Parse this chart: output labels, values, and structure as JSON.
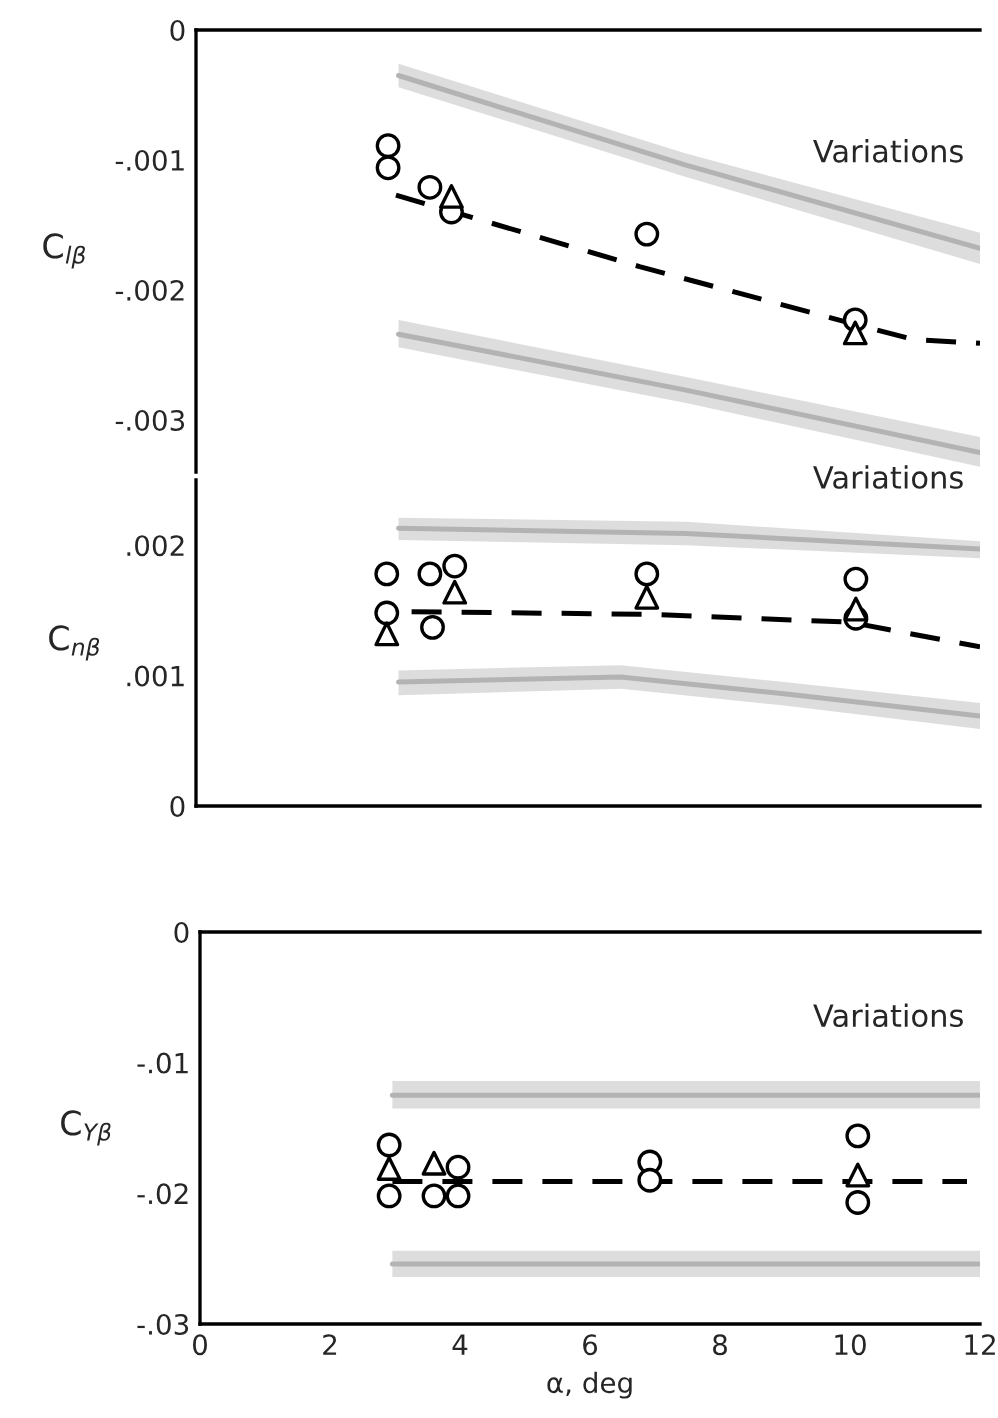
{
  "chart_data": [
    {
      "type": "scatter",
      "ylabel": "C$_{lβ}$",
      "xlim": [
        0,
        12
      ],
      "ylim": [
        -0.0034,
        0
      ],
      "yticks": [
        {
          "value": 0,
          "label": "0"
        },
        {
          "value": -0.001,
          "label": "-.001"
        },
        {
          "value": -0.002,
          "label": "-.002"
        },
        {
          "value": -0.003,
          "label": "-.003"
        }
      ],
      "tick_labels": "y",
      "grid": false,
      "legend": false,
      "annotations": [
        "Variations"
      ],
      "series": [
        {
          "type": "line",
          "color": "#b3b3b3",
          "line_style": "solid",
          "marker": "none",
          "x": [
            3.1,
            7.5,
            12
          ],
          "values": [
            -0.00035,
            -0.00104,
            -0.00168
          ],
          "upper": [
            -0.00026,
            -0.00095,
            -0.00156
          ],
          "lower": [
            -0.00044,
            -0.00113,
            -0.0018
          ]
        },
        {
          "type": "line",
          "color": "#b3b3b3",
          "line_style": "solid",
          "marker": "none",
          "x": [
            3.1,
            7.5,
            12
          ],
          "values": [
            -0.00234,
            -0.00277,
            -0.00325
          ],
          "upper": [
            -0.00223,
            -0.00267,
            -0.00313
          ],
          "lower": [
            -0.00244,
            -0.00287,
            -0.00336
          ]
        },
        {
          "type": "line",
          "color": "#000000",
          "line_style": "dashed",
          "marker": "none",
          "x": [
            3.06,
            6.79,
            10.06,
            10.98,
            12
          ],
          "values": [
            -0.00127,
            -0.00182,
            -0.00226,
            -0.00238,
            -0.00241
          ]
        },
        {
          "color": "#000000",
          "marker": "circle",
          "x": [
            2.94,
            2.94,
            3.58,
            3.91,
            6.9,
            10.09
          ],
          "values": [
            -0.00089,
            -0.00106,
            -0.00121,
            -0.0014,
            -0.00157,
            -0.00223
          ]
        },
        {
          "color": "#000000",
          "marker": "triangle",
          "x": [
            3.91,
            10.09
          ],
          "values": [
            -0.00128,
            -0.00233
          ]
        }
      ]
    },
    {
      "type": "scatter",
      "ylabel": "C$_{nβ}$",
      "xlim": [
        0,
        12
      ],
      "ylim": [
        0,
        0.0025
      ],
      "yticks": [
        {
          "value": 0,
          "label": "0"
        },
        {
          "value": 0.001,
          "label": ".001"
        },
        {
          "value": 0.002,
          "label": ".002"
        }
      ],
      "tick_labels": "y",
      "grid": false,
      "legend": false,
      "annotations": [
        "Variations"
      ],
      "series": [
        {
          "type": "line",
          "color": "#b3b3b3",
          "line_style": "solid",
          "marker": "none",
          "x": [
            3.1,
            7.5,
            12
          ],
          "values": [
            0.00213,
            0.00209,
            0.00197
          ],
          "upper": [
            0.00221,
            0.00218,
            0.00203
          ],
          "lower": [
            0.00204,
            0.002,
            0.0019
          ]
        },
        {
          "type": "line",
          "color": "#b3b3b3",
          "line_style": "solid",
          "marker": "none",
          "x": [
            3.1,
            6.5,
            9,
            12
          ],
          "values": [
            0.00095,
            0.00099,
            0.00086,
            0.00069
          ],
          "upper": [
            0.00104,
            0.00108,
            0.00095,
            0.00079
          ],
          "lower": [
            0.00085,
            0.0009,
            0.00077,
            0.00059
          ]
        },
        {
          "type": "line",
          "color": "#000000",
          "line_style": "dashed",
          "marker": "none",
          "x": [
            3.3,
            6.92,
            10.0,
            12
          ],
          "values": [
            0.00149,
            0.00147,
            0.00141,
            0.00122
          ]
        },
        {
          "color": "#000000",
          "marker": "circle",
          "x": [
            2.92,
            2.92,
            3.58,
            3.62,
            3.96,
            6.9,
            10.1,
            10.1
          ],
          "values": [
            0.00178,
            0.00148,
            0.00178,
            0.00137,
            0.00184,
            0.00178,
            0.00174,
            0.00144
          ]
        },
        {
          "color": "#000000",
          "marker": "triangle",
          "x": [
            2.92,
            3.96,
            6.9,
            10.1
          ],
          "values": [
            0.00132,
            0.00164,
            0.0016,
            0.00151
          ]
        }
      ]
    },
    {
      "type": "scatter",
      "ylabel": "C$_{Yβ}$",
      "xlabel": "α, deg",
      "xlim": [
        0,
        12
      ],
      "ylim": [
        -0.03,
        0
      ],
      "xticks": [
        0,
        2,
        4,
        6,
        8,
        10,
        12
      ],
      "yticks": [
        {
          "value": 0,
          "label": "0"
        },
        {
          "value": -0.01,
          "label": "-.01"
        },
        {
          "value": -0.02,
          "label": "-.02"
        },
        {
          "value": -0.03,
          "label": "-.03"
        }
      ],
      "grid": false,
      "legend": false,
      "annotations": [
        "Variations"
      ],
      "series": [
        {
          "type": "line",
          "color": "#b3b3b3",
          "line_style": "solid",
          "marker": "none",
          "x": [
            2.96,
            12
          ],
          "values": [
            -0.0125,
            -0.0125
          ],
          "upper": [
            -0.0114,
            -0.0114
          ],
          "lower": [
            -0.0135,
            -0.0135
          ]
        },
        {
          "type": "line",
          "color": "#b3b3b3",
          "line_style": "solid",
          "marker": "none",
          "x": [
            2.96,
            12
          ],
          "values": [
            -0.0254,
            -0.0254
          ],
          "upper": [
            -0.0244,
            -0.0244
          ],
          "lower": [
            -0.0264,
            -0.0264
          ]
        },
        {
          "type": "line",
          "color": "#000000",
          "line_style": "dashed",
          "marker": "none",
          "x": [
            2.96,
            11.8
          ],
          "values": [
            -0.0191,
            -0.0191
          ]
        },
        {
          "color": "#000000",
          "marker": "circle",
          "x": [
            2.91,
            2.91,
            3.6,
            3.97,
            3.97,
            6.92,
            6.92,
            10.12,
            10.12
          ],
          "values": [
            -0.0163,
            -0.0202,
            -0.0202,
            -0.018,
            -0.0202,
            -0.0176,
            -0.019,
            -0.0156,
            -0.0207
          ]
        },
        {
          "color": "#000000",
          "marker": "triangle",
          "x": [
            2.91,
            3.6,
            10.12
          ],
          "values": [
            -0.0181,
            -0.0177,
            -0.0186
          ]
        }
      ]
    }
  ]
}
